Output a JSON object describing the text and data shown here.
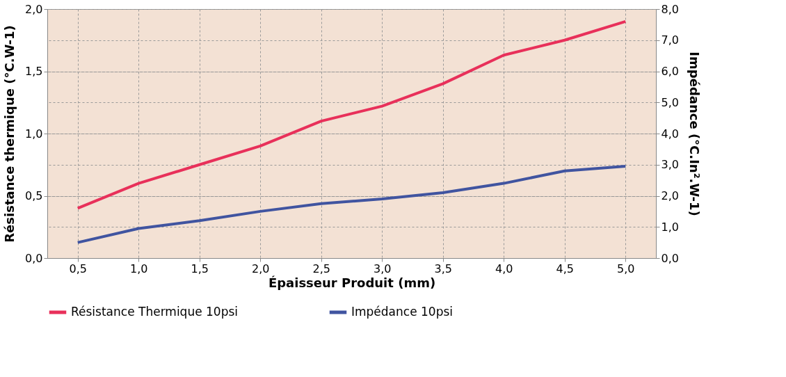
{
  "chart_data": {
    "type": "line",
    "xlabel": "Épaisseur Produit (mm)",
    "ylabel": "Résistance thermique (°C.W-1)",
    "y2label": "Impédance (°C.In².W-1)",
    "categories": [
      "0,5",
      "1,0",
      "1,5",
      "2,0",
      "2,5",
      "3,0",
      "3,5",
      "4,0",
      "4,5",
      "5,0"
    ],
    "series": [
      {
        "name": "Résistance Thermique 10psi",
        "color": "#e8305a",
        "axis": "y",
        "values": [
          0.4,
          0.6,
          0.75,
          0.9,
          1.1,
          1.22,
          1.4,
          1.63,
          1.75,
          1.9
        ]
      },
      {
        "name": "Impédance 10psi",
        "color": "#4054a0",
        "axis": "y2",
        "values": [
          0.5,
          0.95,
          1.2,
          1.5,
          1.75,
          1.9,
          2.1,
          2.4,
          2.8,
          2.95
        ]
      }
    ],
    "ylim": [
      0,
      2
    ],
    "yticks": [
      {
        "value": 0,
        "label": "0,0"
      },
      {
        "value": 0.5,
        "label": "0,5"
      },
      {
        "value": 1,
        "label": "1,0"
      },
      {
        "value": 1.5,
        "label": "1,5"
      },
      {
        "value": 2,
        "label": "2,0"
      }
    ],
    "y2lim": [
      0,
      8
    ],
    "y2ticks": [
      {
        "value": 0,
        "label": "0,0"
      },
      {
        "value": 1,
        "label": "1,0"
      },
      {
        "value": 2,
        "label": "2,0"
      },
      {
        "value": 3,
        "label": "3,0"
      },
      {
        "value": 4,
        "label": "4,0"
      },
      {
        "value": 5,
        "label": "5,0"
      },
      {
        "value": 6,
        "label": "6,0"
      },
      {
        "value": 7,
        "label": "7,0"
      },
      {
        "value": 8,
        "label": "8,0"
      }
    ],
    "grid": true,
    "legend": "bottom",
    "marker": "none",
    "line_style": "solid"
  }
}
